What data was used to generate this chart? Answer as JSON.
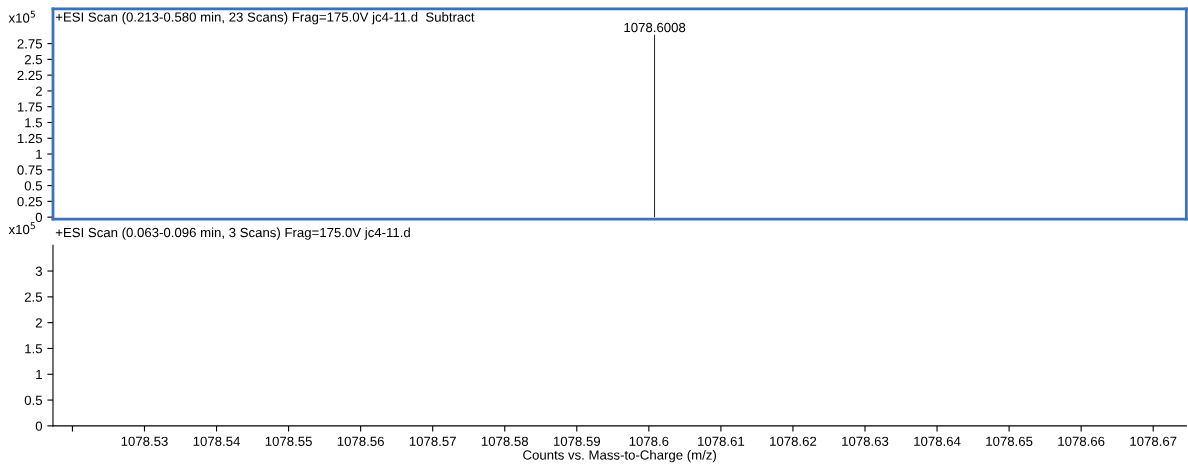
{
  "chart_data": [
    {
      "type": "bar",
      "title": "+ESI Scan (0.213-0.580 min, 23 Scans) Frag=175.0V jc4-11.d  Subtract",
      "annotations": [
        "x10$^{5}$",
        {
          "text": "1078.6008",
          "x": 1078.6008,
          "y": 2.89
        }
      ],
      "x": [
        1078.6008
      ],
      "values": [
        2.89
      ],
      "color": "#000000",
      "xlim": [
        1078.5173,
        1078.6746
      ],
      "ylim": [
        -0.03,
        3.3
      ],
      "yticks": [
        0,
        0.25,
        0.5,
        0.75,
        1,
        1.25,
        1.5,
        1.75,
        2,
        2.25,
        2.5,
        2.75
      ],
      "tick_labels": "y"
    },
    {
      "type": "line",
      "title": "+ESI Scan (0.063-0.096 min, 3 Scans) Frag=175.0V jc4-11.d",
      "annotations": [
        "x10$^{5}$"
      ],
      "xlabel": "Counts vs. Mass-to-Charge (m/z)",
      "xlim": [
        1078.5173,
        1078.6746
      ],
      "ylim": [
        0,
        3.5
      ],
      "yticks": [
        0,
        0.5,
        1,
        1.5,
        2,
        2.5,
        3
      ],
      "xticks": [
        {
          "value": 1078.52,
          "label": null
        },
        1078.53,
        1078.54,
        1078.55,
        1078.56,
        1078.57,
        1078.58,
        1078.59,
        1078.6,
        1078.61,
        1078.62,
        1078.63,
        1078.64,
        1078.65,
        1078.66,
        1078.67
      ]
    }
  ]
}
